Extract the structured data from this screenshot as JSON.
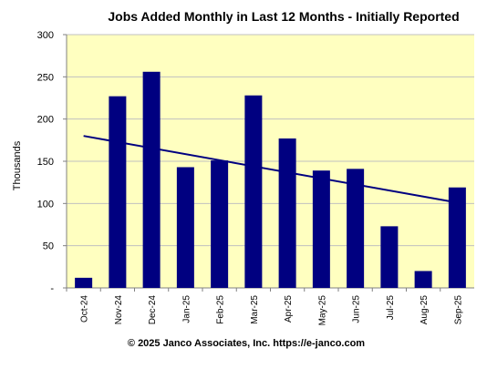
{
  "chart_data": {
    "type": "bar",
    "title": "Jobs Added Monthly in Last 12 Months - Initially Reported",
    "ylabel": "Thousands",
    "xlabel": "",
    "categories": [
      "Oct-24",
      "Nov-24",
      "Dec-24",
      "Jan-25",
      "Feb-25",
      "Mar-25",
      "Apr-25",
      "May-25",
      "Jun-25",
      "Jul-25",
      "Aug-25",
      "Sep-25"
    ],
    "values": [
      12,
      227,
      256,
      143,
      151,
      228,
      177,
      139,
      141,
      73,
      20,
      119
    ],
    "ylim": [
      0,
      300
    ],
    "yticks": [
      0,
      50,
      100,
      150,
      200,
      250,
      300
    ],
    "ytick_labels": [
      "-",
      "50",
      "100",
      "150",
      "200",
      "250",
      "300"
    ],
    "trendline": {
      "type": "linear",
      "start": 180,
      "end": 101
    },
    "grid": true,
    "legend": "none",
    "colors": {
      "bar": "#000080",
      "trend": "#000080",
      "plot_bg": "#ffffc0",
      "grid": "#c0c0c0"
    }
  },
  "footer": "© 2025 Janco Associates, Inc. https://e-janco.com"
}
